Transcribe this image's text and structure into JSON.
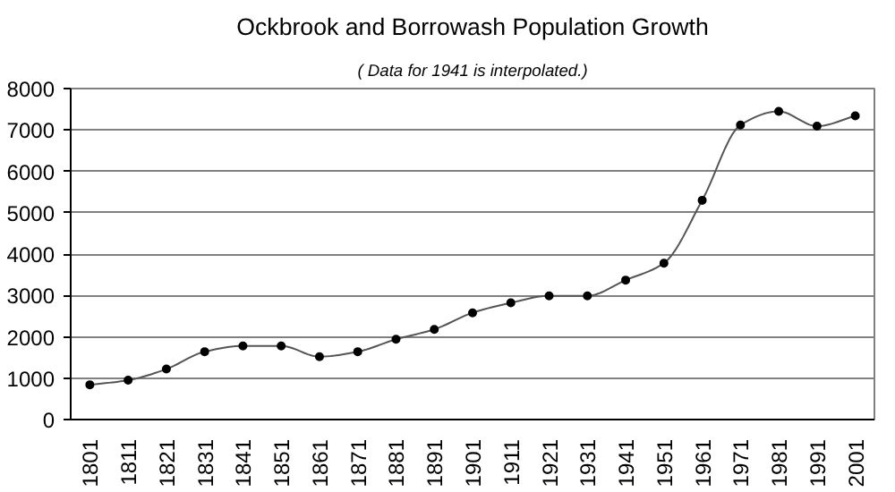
{
  "chart_data": {
    "type": "line",
    "title": "Ockbrook and Borrowash Population Growth",
    "subtitle": "( Data for 1941 is interpolated.)",
    "categories": [
      "1801",
      "1811",
      "1821",
      "1831",
      "1841",
      "1851",
      "1861",
      "1871",
      "1881",
      "1891",
      "1901",
      "1911",
      "1921",
      "1931",
      "1941",
      "1951",
      "1961",
      "1971",
      "1981",
      "1991",
      "2001"
    ],
    "series": [
      {
        "color": "#555555",
        "values": [
          840,
          950,
          1220,
          1640,
          1780,
          1780,
          1520,
          1640,
          1940,
          2180,
          2580,
          2820,
          2990,
          2990,
          3370,
          3780,
          5300,
          7120,
          7450,
          7090,
          7340
        ]
      }
    ],
    "ylim": [
      0,
      8000
    ],
    "yticks": [
      0,
      1000,
      2000,
      3000,
      4000,
      5000,
      6000,
      7000,
      8000
    ],
    "grid": "y",
    "marker": "circle",
    "line_style": "solid"
  }
}
